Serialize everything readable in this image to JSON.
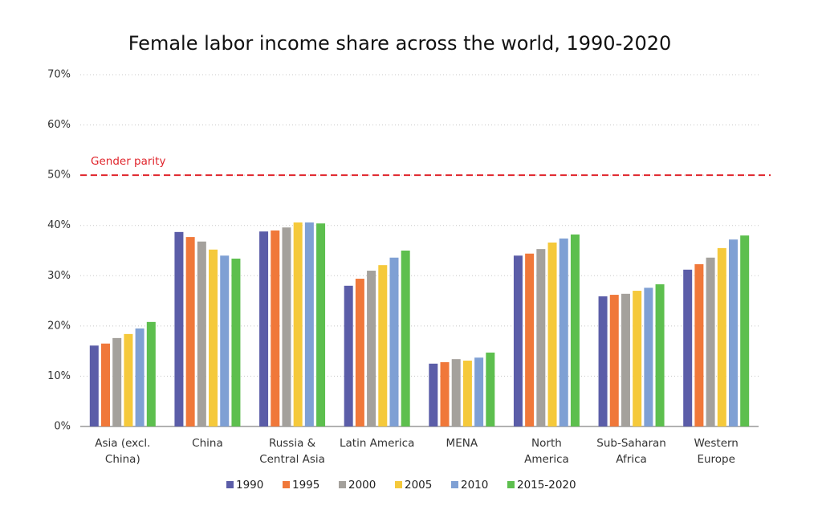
{
  "chart_data": {
    "type": "bar",
    "title": "Female labor income share across the world, 1990-2020",
    "categories": [
      "Asia (excl.\nChina)",
      "China",
      "Russia &\nCentral Asia",
      "Latin America",
      "MENA",
      "North\nAmerica",
      "Sub-Saharan\nAfrica",
      "Western\nEurope"
    ],
    "series": [
      {
        "name": "1990",
        "color": "#5b5da8",
        "values": [
          16.1,
          38.7,
          38.8,
          28.0,
          12.5,
          34.0,
          25.9,
          31.2
        ]
      },
      {
        "name": "1995",
        "color": "#f0783a",
        "values": [
          16.5,
          37.7,
          39.0,
          29.4,
          12.8,
          34.4,
          26.2,
          32.3
        ]
      },
      {
        "name": "2000",
        "color": "#a4a19c",
        "values": [
          17.6,
          36.8,
          39.6,
          31.0,
          13.4,
          35.3,
          26.4,
          33.6
        ]
      },
      {
        "name": "2005",
        "color": "#f5c93b",
        "values": [
          18.4,
          35.2,
          40.6,
          32.1,
          13.1,
          36.6,
          27.0,
          35.5
        ]
      },
      {
        "name": "2010",
        "color": "#7fa0d4",
        "values": [
          19.5,
          34.0,
          40.6,
          33.6,
          13.7,
          37.4,
          27.6,
          37.2
        ]
      },
      {
        "name": "2015-2020",
        "color": "#5dbf4e",
        "values": [
          20.8,
          33.4,
          40.4,
          35.0,
          14.7,
          38.2,
          28.3,
          38.0
        ]
      }
    ],
    "ylim": [
      0,
      70
    ],
    "yticks": [
      {
        "value": 0,
        "label": "0%"
      },
      {
        "value": 10,
        "label": "10%"
      },
      {
        "value": 20,
        "label": "20%"
      },
      {
        "value": 30,
        "label": "30%"
      },
      {
        "value": 40,
        "label": "40%"
      },
      {
        "value": 50,
        "label": "50%"
      },
      {
        "value": 60,
        "label": "60%"
      },
      {
        "value": 70,
        "label": "70%"
      }
    ],
    "grid": true,
    "reference_line": {
      "value": 50,
      "label": "Gender parity",
      "color": "#e0252c"
    },
    "legend": "bottom"
  }
}
